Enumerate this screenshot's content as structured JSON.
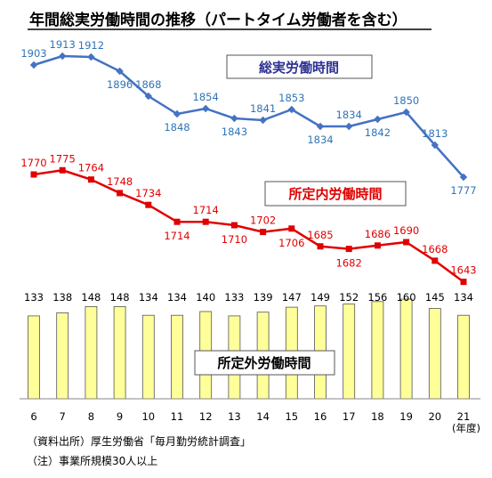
{
  "chart_data": {
    "type": "line",
    "title": "年間総実労働時間の推移（パートタイム労働者を含む）",
    "x_unit_label": "(年度)",
    "categories": [
      "6",
      "7",
      "8",
      "9",
      "10",
      "11",
      "12",
      "13",
      "14",
      "15",
      "16",
      "17",
      "18",
      "19",
      "20",
      "21"
    ],
    "series": [
      {
        "name": "総実労働時間",
        "type": "line",
        "color": "#4472c4",
        "label_color": "#2e75b6",
        "values": [
          1903,
          1913,
          1912,
          1896,
          1868,
          1848,
          1854,
          1843,
          1841,
          1853,
          1834,
          1834,
          1842,
          1850,
          1813,
          1777
        ]
      },
      {
        "name": "所定内労働時間",
        "type": "line",
        "color": "#e00000",
        "label_color": "#e00000",
        "values": [
          1770,
          1775,
          1764,
          1748,
          1734,
          1714,
          1714,
          1710,
          1702,
          1706,
          1685,
          1682,
          1686,
          1690,
          1668,
          1643
        ]
      },
      {
        "name": "所定外労働時間",
        "type": "bar",
        "color": "#ffff99",
        "label_color": "#000000",
        "values": [
          133,
          138,
          148,
          148,
          134,
          134,
          140,
          133,
          139,
          147,
          149,
          152,
          156,
          160,
          145,
          134
        ]
      }
    ],
    "grid": false
  },
  "notes": {
    "source": "（資料出所）厚生労働省「毎月勤労統計調査」",
    "note": "（注）事業所規模30人以上"
  }
}
